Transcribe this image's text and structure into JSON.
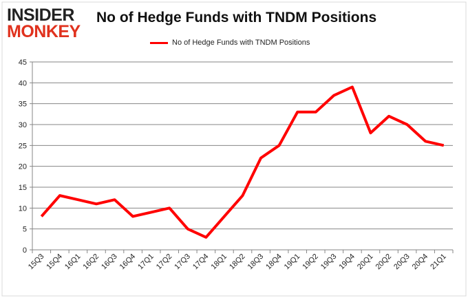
{
  "logo": {
    "line1": "INSIDER",
    "line2": "MONKEY"
  },
  "chart_data": {
    "type": "line",
    "title": "No of Hedge Funds with TNDM Positions",
    "xlabel": "",
    "ylabel": "",
    "ylim": [
      0,
      45
    ],
    "yticks": [
      0,
      5,
      10,
      15,
      20,
      25,
      30,
      35,
      40,
      45
    ],
    "grid": true,
    "legend_position": "top-center",
    "categories": [
      "15Q3",
      "15Q4",
      "16Q1",
      "16Q2",
      "16Q3",
      "16Q4",
      "17Q1",
      "17Q2",
      "17Q3",
      "17Q4",
      "18Q1",
      "18Q2",
      "18Q3",
      "18Q4",
      "19Q1",
      "19Q2",
      "19Q3",
      "19Q4",
      "20Q1",
      "20Q2",
      "20Q3",
      "20Q4",
      "21Q1"
    ],
    "series": [
      {
        "name": "No of Hedge Funds with TNDM  Positions",
        "color": "#ff0000",
        "values": [
          8,
          13,
          12,
          11,
          12,
          8,
          9,
          10,
          5,
          3,
          8,
          13,
          22,
          25,
          33,
          33,
          37,
          39,
          28,
          32,
          30,
          26,
          25
        ]
      }
    ]
  }
}
